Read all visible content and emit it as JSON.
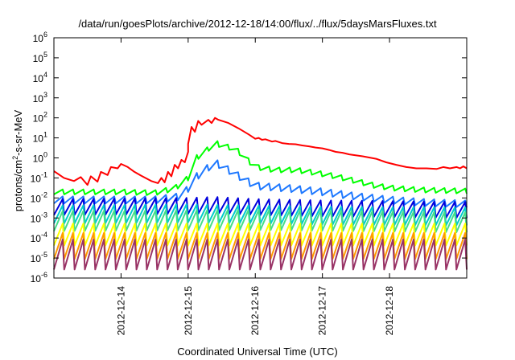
{
  "chart_data": {
    "type": "line",
    "title": "/data/run/goesPlots/archive/2012-12-18/14:00/flux/../flux/5daysMarsFluxes.txt",
    "xlabel": "Coordinated Universal Time (UTC)",
    "ylabel": {
      "base": "protons/cm",
      "exp": "2",
      "rest": "-s-sr-MeV"
    },
    "y_scale": "log",
    "ylim": [
      1e-06,
      1000000.0
    ],
    "xlim": [
      0,
      6.15
    ],
    "x_ticks": [
      {
        "pos": 1,
        "label": "2012-12-14"
      },
      {
        "pos": 2,
        "label": "2012-12-15"
      },
      {
        "pos": 3,
        "label": "2012-12-16"
      },
      {
        "pos": 4,
        "label": "2012-12-17"
      },
      {
        "pos": 5,
        "label": "2012-12-18"
      }
    ],
    "y_ticks": [
      {
        "exp": -6,
        "label": "10",
        "sup": "-6"
      },
      {
        "exp": -5,
        "label": "10",
        "sup": "-5"
      },
      {
        "exp": -4,
        "label": "10",
        "sup": "-4"
      },
      {
        "exp": -3,
        "label": "10",
        "sup": "-3"
      },
      {
        "exp": -2,
        "label": "10",
        "sup": "-2"
      },
      {
        "exp": -1,
        "label": "10",
        "sup": "-1"
      },
      {
        "exp": 0,
        "label": "10",
        "sup": "0"
      },
      {
        "exp": 1,
        "label": "10",
        "sup": "1"
      },
      {
        "exp": 2,
        "label": "10",
        "sup": "2"
      },
      {
        "exp": 3,
        "label": "10",
        "sup": "3"
      },
      {
        "exp": 4,
        "label": "10",
        "sup": "4"
      },
      {
        "exp": 5,
        "label": "10",
        "sup": "5"
      },
      {
        "exp": 6,
        "label": "10",
        "sup": "6"
      }
    ],
    "grid": false,
    "legend": "none",
    "series": [
      {
        "color": "#ff0000",
        "points": [
          [
            0,
            0.22
          ],
          [
            0.15,
            0.1
          ],
          [
            0.3,
            0.07
          ],
          [
            0.4,
            0.11
          ],
          [
            0.5,
            0.045
          ],
          [
            0.55,
            0.12
          ],
          [
            0.65,
            0.065
          ],
          [
            0.7,
            0.2
          ],
          [
            0.8,
            0.14
          ],
          [
            0.85,
            0.35
          ],
          [
            0.95,
            0.3
          ],
          [
            1,
            0.5
          ],
          [
            1.1,
            0.35
          ],
          [
            1.2,
            0.2
          ],
          [
            1.3,
            0.13
          ],
          [
            1.45,
            0.07
          ],
          [
            1.55,
            0.055
          ],
          [
            1.6,
            0.1
          ],
          [
            1.65,
            0.06
          ],
          [
            1.7,
            0.2
          ],
          [
            1.75,
            0.12
          ],
          [
            1.8,
            0.45
          ],
          [
            1.85,
            0.3
          ],
          [
            1.9,
            0.8
          ],
          [
            1.95,
            0.6
          ],
          [
            2,
            2
          ],
          [
            2,
            5
          ],
          [
            2.05,
            35
          ],
          [
            2.1,
            20
          ],
          [
            2.15,
            70
          ],
          [
            2.2,
            45
          ],
          [
            2.3,
            80
          ],
          [
            2.35,
            55
          ],
          [
            2.4,
            100
          ],
          [
            2.45,
            80
          ],
          [
            2.6,
            55
          ],
          [
            2.75,
            30
          ],
          [
            2.9,
            15
          ],
          [
            3,
            9
          ],
          [
            3.05,
            10
          ],
          [
            3.1,
            8
          ],
          [
            3.15,
            8.5
          ],
          [
            3.25,
            6.5
          ],
          [
            3.3,
            7
          ],
          [
            3.4,
            5.5
          ],
          [
            3.5,
            5
          ],
          [
            3.6,
            4.8
          ],
          [
            3.7,
            4.2
          ],
          [
            3.8,
            3.8
          ],
          [
            3.9,
            3.3
          ],
          [
            4,
            3
          ],
          [
            4.1,
            2.5
          ],
          [
            4.2,
            2
          ],
          [
            4.3,
            1.8
          ],
          [
            4.4,
            1.5
          ],
          [
            4.6,
            1.2
          ],
          [
            4.8,
            0.9
          ],
          [
            4.95,
            0.6
          ],
          [
            5.1,
            0.45
          ],
          [
            5.25,
            0.35
          ],
          [
            5.4,
            0.3
          ],
          [
            5.55,
            0.3
          ],
          [
            5.7,
            0.28
          ],
          [
            5.8,
            0.35
          ],
          [
            5.9,
            0.3
          ],
          [
            6,
            0.35
          ],
          [
            6.05,
            0.3
          ],
          [
            6.1,
            0.38
          ],
          [
            6.15,
            0.3
          ]
        ]
      },
      {
        "color": "#00ff00",
        "base_points": [
          [
            0,
            0.02
          ],
          [
            1,
            0.02
          ],
          [
            1.5,
            0.018
          ],
          [
            1.8,
            0.03
          ],
          [
            2,
            0.1
          ],
          [
            2.1,
            0.9
          ],
          [
            2.25,
            2
          ],
          [
            2.4,
            6
          ],
          [
            2.5,
            4
          ],
          [
            2.7,
            3
          ],
          [
            2.85,
            1
          ],
          [
            3,
            0.35
          ],
          [
            3.3,
            0.25
          ],
          [
            3.6,
            0.25
          ],
          [
            3.9,
            0.18
          ],
          [
            4.2,
            0.12
          ],
          [
            4.5,
            0.07
          ],
          [
            4.8,
            0.04
          ],
          [
            5.1,
            0.03
          ],
          [
            5.5,
            0.025
          ],
          [
            6.15,
            0.022
          ]
        ],
        "cycles": 40,
        "amp": 0.25
      },
      {
        "color": "#1e78ff",
        "base_points": [
          [
            0,
            0.008
          ],
          [
            1.5,
            0.008
          ],
          [
            1.9,
            0.012
          ],
          [
            2,
            0.03
          ],
          [
            2.1,
            0.1
          ],
          [
            2.4,
            0.6
          ],
          [
            2.6,
            0.25
          ],
          [
            2.85,
            0.08
          ],
          [
            3,
            0.04
          ],
          [
            3.5,
            0.03
          ],
          [
            4,
            0.02
          ],
          [
            4.5,
            0.012
          ],
          [
            5,
            0.008
          ],
          [
            5.5,
            0.006
          ],
          [
            6.15,
            0.005
          ]
        ],
        "cycles": 40,
        "amp": 0.35
      },
      {
        "color": "#0000dd",
        "base_points": [
          [
            0,
            0.0035
          ],
          [
            2,
            0.004
          ],
          [
            2.4,
            0.0045
          ],
          [
            3,
            0.0035
          ],
          [
            4,
            0.003
          ],
          [
            5,
            0.0028
          ],
          [
            6.15,
            0.0025
          ]
        ],
        "cycles": 40,
        "amp": 0.8
      },
      {
        "color": "#00cccc",
        "base_points": [
          [
            0,
            0.0015
          ],
          [
            2,
            0.0017
          ],
          [
            3,
            0.0015
          ],
          [
            4,
            0.0013
          ],
          [
            6.15,
            0.0012
          ]
        ],
        "cycles": 40,
        "amp": 0.9
      },
      {
        "color": "#44dd88",
        "base_points": [
          [
            0,
            0.0007
          ],
          [
            3,
            0.0008
          ],
          [
            6.15,
            0.0006
          ]
        ],
        "cycles": 40,
        "amp": 1.0
      },
      {
        "color": "#ffff00",
        "base_points": [
          [
            0,
            0.00015
          ],
          [
            6.15,
            0.00015
          ]
        ],
        "cycles": 40,
        "amp": 1.1
      },
      {
        "color": "#ff9900",
        "base_points": [
          [
            0,
            4e-05
          ],
          [
            6.15,
            4e-05
          ]
        ],
        "cycles": 40,
        "amp": 1.3
      },
      {
        "color": "#993366",
        "base_points": [
          [
            0,
            1.5e-05
          ],
          [
            6.15,
            1.5e-05
          ]
        ],
        "cycles": 40,
        "amp": 1.5
      }
    ]
  }
}
